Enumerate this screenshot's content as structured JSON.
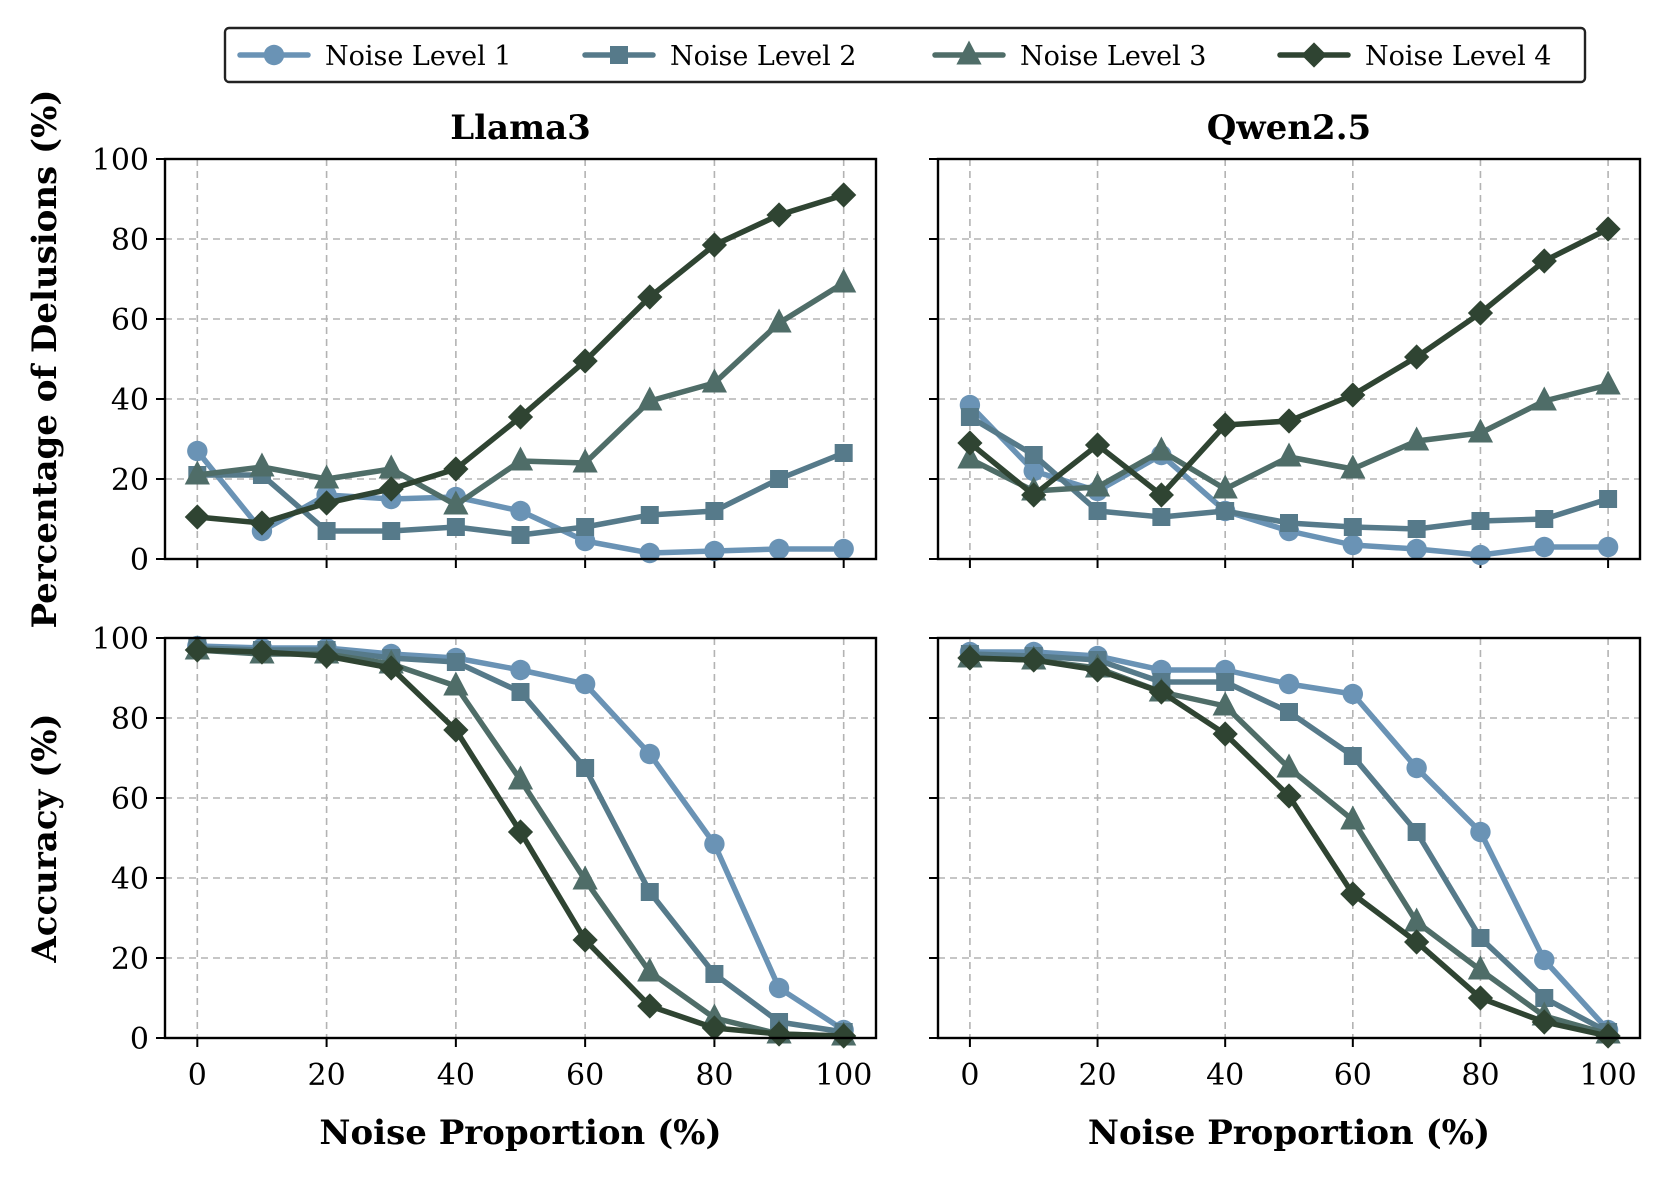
{
  "chart_data": {
    "type": "line",
    "legend": {
      "placement": "top-center"
    },
    "series_styles": [
      {
        "name": "Noise Level 1",
        "color": "#6a93b5",
        "marker": "circle"
      },
      {
        "name": "Noise Level 2",
        "color": "#567a8a",
        "marker": "square"
      },
      {
        "name": "Noise Level 3",
        "color": "#4f6d68",
        "marker": "triangle"
      },
      {
        "name": "Noise Level 4",
        "color": "#2f4432",
        "marker": "diamond"
      }
    ],
    "x": [
      0,
      10,
      20,
      30,
      40,
      50,
      60,
      70,
      80,
      90,
      100
    ],
    "xticks": [
      "0",
      "20",
      "40",
      "60",
      "80",
      "100"
    ],
    "yticks": [
      "0",
      "20",
      "40",
      "60",
      "80",
      "100"
    ],
    "xlim": [
      -5,
      105
    ],
    "ylim": [
      0,
      100
    ],
    "grid": true,
    "xlabel": "Noise Proportion (%)",
    "panels": [
      {
        "title": "Llama3",
        "row": 0,
        "col": 0,
        "ylabel": "Percentage of Delusions (%)",
        "series": [
          {
            "name": "Noise Level 1",
            "values": [
              27,
              7,
              16,
              15,
              15.5,
              12,
              4.5,
              1.5,
              2,
              2.5,
              2.5
            ]
          },
          {
            "name": "Noise Level 2",
            "values": [
              21,
              21,
              7,
              7,
              8,
              6,
              8,
              11,
              12,
              20,
              26.5
            ]
          },
          {
            "name": "Noise Level 3",
            "values": [
              21,
              23,
              20,
              22.5,
              13.5,
              24.5,
              24,
              39.5,
              44,
              59,
              69
            ]
          },
          {
            "name": "Noise Level 4",
            "values": [
              10.5,
              9,
              14,
              17.5,
              22.5,
              35.5,
              49.5,
              65.5,
              78.5,
              86,
              91
            ]
          }
        ]
      },
      {
        "title": "Qwen2.5",
        "row": 0,
        "col": 1,
        "ylabel": "",
        "series": [
          {
            "name": "Noise Level 1",
            "values": [
              38.5,
              22,
              17,
              26,
              12,
              7,
              3.5,
              2.5,
              1,
              3,
              3
            ]
          },
          {
            "name": "Noise Level 2",
            "values": [
              35.5,
              26,
              12,
              10.5,
              12,
              9,
              8,
              7.5,
              9.5,
              10,
              15
            ]
          },
          {
            "name": "Noise Level 3",
            "values": [
              25,
              17,
              18,
              27,
              17.5,
              25.5,
              22.5,
              29.5,
              31.5,
              39.5,
              43.5
            ]
          },
          {
            "name": "Noise Level 4",
            "values": [
              29,
              16,
              28.5,
              16,
              33.5,
              34.5,
              41,
              50.5,
              61.5,
              74.5,
              82.5
            ]
          }
        ]
      },
      {
        "title": "",
        "row": 1,
        "col": 0,
        "ylabel": "Accuracy (%)",
        "series": [
          {
            "name": "Noise Level 1",
            "values": [
              98,
              97.5,
              97.5,
              96,
              95,
              92,
              88.5,
              71,
              48.5,
              12.5,
              2
            ]
          },
          {
            "name": "Noise Level 2",
            "values": [
              97.5,
              97,
              97,
              95,
              94,
              86.5,
              67.5,
              36.5,
              16,
              4,
              1.5
            ]
          },
          {
            "name": "Noise Level 3",
            "values": [
              97,
              96,
              96,
              93.5,
              88,
              64.5,
              39.5,
              16.5,
              5,
              1,
              0.5
            ]
          },
          {
            "name": "Noise Level 4",
            "values": [
              97,
              96.5,
              95.5,
              92.5,
              77,
              51.5,
              24.5,
              8,
              2.5,
              1,
              0.5
            ]
          }
        ]
      },
      {
        "title": "",
        "row": 1,
        "col": 1,
        "ylabel": "",
        "series": [
          {
            "name": "Noise Level 1",
            "values": [
              96.5,
              96.5,
              95.5,
              92,
              92,
              88.5,
              86,
              67.5,
              51.5,
              19.5,
              2
            ]
          },
          {
            "name": "Noise Level 2",
            "values": [
              96,
              95.5,
              94.5,
              89,
              89,
              81.5,
              70.5,
              51.5,
              25,
              10,
              1.5
            ]
          },
          {
            "name": "Noise Level 3",
            "values": [
              95,
              94.5,
              92.5,
              86.5,
              83,
              67.5,
              54.5,
              29,
              17,
              5.5,
              1
            ]
          },
          {
            "name": "Noise Level 4",
            "values": [
              95,
              94.5,
              92,
              86.5,
              76,
              60.5,
              36,
              24,
              10,
              4,
              0.5
            ]
          }
        ]
      }
    ]
  }
}
